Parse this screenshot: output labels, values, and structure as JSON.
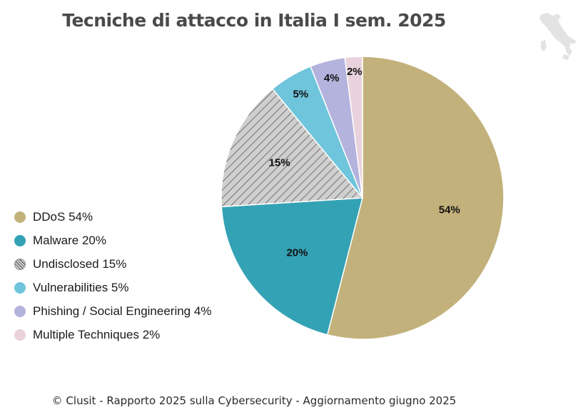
{
  "chart_data": {
    "type": "pie",
    "title": "Tecniche di attacco in Italia I sem. 2025",
    "slices": [
      {
        "name": "DDoS",
        "value": 54,
        "label": "54%",
        "legend": "DDoS 54%",
        "color": "#c2b17b",
        "pattern": null
      },
      {
        "name": "Malware",
        "value": 20,
        "label": "20%",
        "legend": "Malware 20%",
        "color": "#34a2b5",
        "pattern": null
      },
      {
        "name": "Undisclosed",
        "value": 15,
        "label": "15%",
        "legend": "Undisclosed 15%",
        "color": "#cfcfcf",
        "pattern": "hatch"
      },
      {
        "name": "Vulnerabilities",
        "value": 5,
        "label": "5%",
        "legend": "Vulnerabilities 5%",
        "color": "#6fc5db",
        "pattern": null
      },
      {
        "name": "Phishing / Social Engineering",
        "value": 4,
        "label": "4%",
        "legend": "Phishing / Social Engineering 4%",
        "color": "#b3b3dd",
        "pattern": null
      },
      {
        "name": "Multiple Techniques",
        "value": 2,
        "label": "2%",
        "legend": "Multiple Techniques 2%",
        "color": "#ead2dc",
        "pattern": null
      }
    ],
    "legend_position": "left"
  },
  "footer": "© Clusit - Rapporto 2025 sulla Cybersecurity - Aggiornamento giugno 2025"
}
